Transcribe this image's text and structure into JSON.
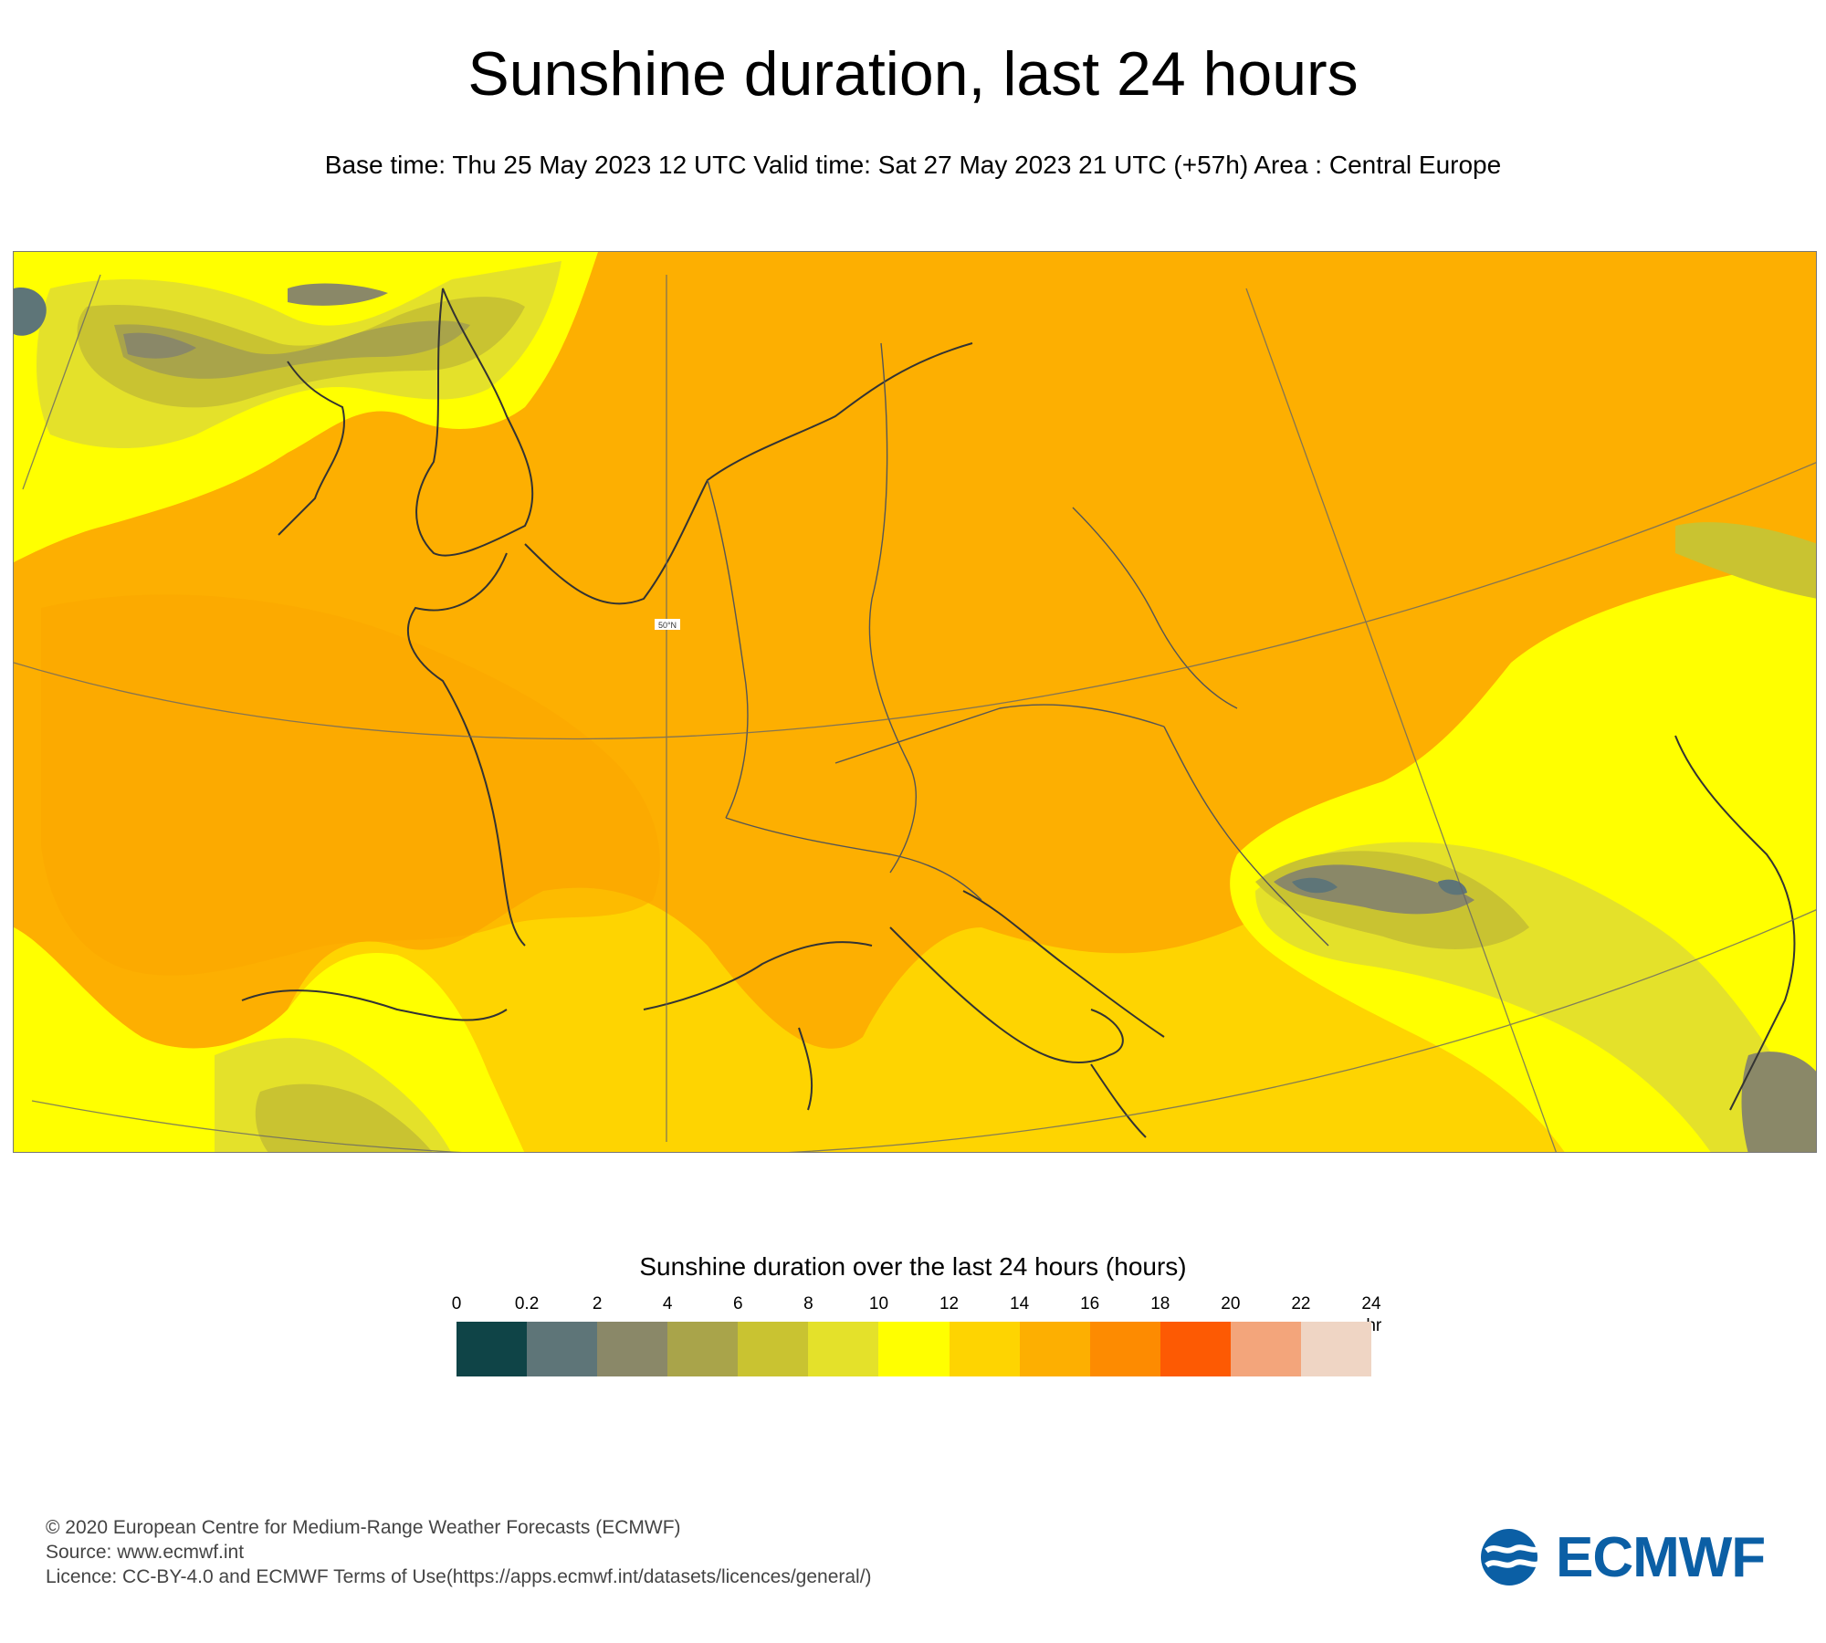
{
  "header": {
    "title": "Sunshine duration, last 24 hours",
    "subtitle": "Base time: Thu 25 May 2023 12 UTC Valid time: Sat 27 May 2023 21 UTC (+57h) Area : Central Europe"
  },
  "map": {
    "area": "Central Europe",
    "graticule_label": "50°N",
    "field": "sunshine duration"
  },
  "legend": {
    "title": "Sunshine duration over the last 24 hours (hours)",
    "ticks": [
      "0",
      "0.2",
      "2",
      "4",
      "6",
      "8",
      "10",
      "12",
      "14",
      "16",
      "18",
      "20",
      "22",
      "24"
    ],
    "unit": "-hr",
    "colors": [
      "#0f4447",
      "#5e7578",
      "#8a8868",
      "#a9a44a",
      "#c9c331",
      "#e4e12a",
      "#ffff00",
      "#fed401",
      "#fdaf01",
      "#fd8b01",
      "#fd5a03",
      "#f3a57b",
      "#efd5c4"
    ]
  },
  "footer": {
    "line1": "© 2020 European Centre for Medium-Range Weather Forecasts (ECMWF)",
    "line2": "Source: www.ecmwf.int",
    "line3": "Licence: CC-BY-4.0 and ECMWF Terms of Use(https://apps.ecmwf.int/datasets/licences/general/)"
  },
  "logo": {
    "text": "ECMWF",
    "color": "#0b5fa5"
  }
}
